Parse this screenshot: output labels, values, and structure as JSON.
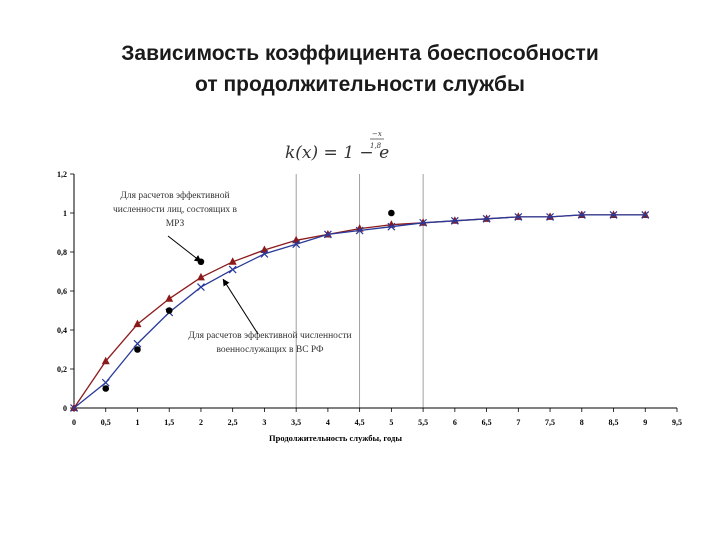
{
  "slide": {
    "title_line1": "Зависимость коэффициента боеспособности",
    "title_line2": "от продолжительности службы"
  },
  "formula": {
    "lhs": "k(x) = 1 − e",
    "exp_num": "−x",
    "exp_den": "1,8"
  },
  "chart_data": {
    "type": "line",
    "xlabel": "Продолжительность службы, годы",
    "ylabel": "",
    "xlim": [
      0,
      9.5
    ],
    "ylim": [
      0,
      1.2
    ],
    "x_ticks": [
      "0",
      "0,5",
      "1",
      "1,5",
      "2",
      "2,5",
      "3",
      "3,5",
      "4",
      "4,5",
      "5",
      "5,5",
      "6",
      "6,5",
      "7",
      "7,5",
      "8",
      "8,5",
      "9",
      "9,5"
    ],
    "y_ticks": [
      "0",
      "0,2",
      "0,4",
      "0,6",
      "0,8",
      "1",
      "1,2"
    ],
    "vertical_gridlines_x": [
      3.5,
      4.5,
      5.5
    ],
    "series": [
      {
        "marker": "triangle",
        "color": "#8b1a1a",
        "x": [
          0,
          0.5,
          1,
          1.5,
          2,
          2.5,
          3,
          3.5,
          4,
          4.5,
          5,
          5.5,
          6,
          6.5,
          7,
          7.5,
          8,
          8.5,
          9
        ],
        "y": [
          0,
          0.24,
          0.43,
          0.56,
          0.67,
          0.75,
          0.81,
          0.86,
          0.89,
          0.92,
          0.94,
          0.95,
          0.96,
          0.97,
          0.98,
          0.98,
          0.99,
          0.99,
          0.99
        ]
      },
      {
        "marker": "x",
        "color": "#2a3a9a",
        "x": [
          0,
          0.5,
          1,
          1.5,
          2,
          2.5,
          3,
          3.5,
          4,
          4.5,
          5,
          5.5,
          6,
          6.5,
          7,
          7.5,
          8,
          8.5,
          9
        ],
        "y": [
          0,
          0.13,
          0.33,
          0.49,
          0.62,
          0.71,
          0.79,
          0.84,
          0.89,
          0.91,
          0.93,
          0.95,
          0.96,
          0.97,
          0.98,
          0.98,
          0.99,
          0.99,
          0.99
        ]
      },
      {
        "marker": "dot",
        "color": "#000000",
        "x": [
          0.5,
          1,
          1.5,
          2,
          5
        ],
        "y": [
          0.1,
          0.3,
          0.5,
          0.75,
          1.0
        ]
      }
    ],
    "annotations": [
      {
        "lines": [
          "Для расчетов эффективной",
          "численности лиц, состоящих в",
          "МРЗ"
        ],
        "target": [
          2.0,
          0.75
        ]
      },
      {
        "lines": [
          "Для расчетов эффективной численности",
          "военнослужащих в ВС РФ"
        ],
        "target": [
          2.35,
          0.66
        ]
      }
    ]
  }
}
